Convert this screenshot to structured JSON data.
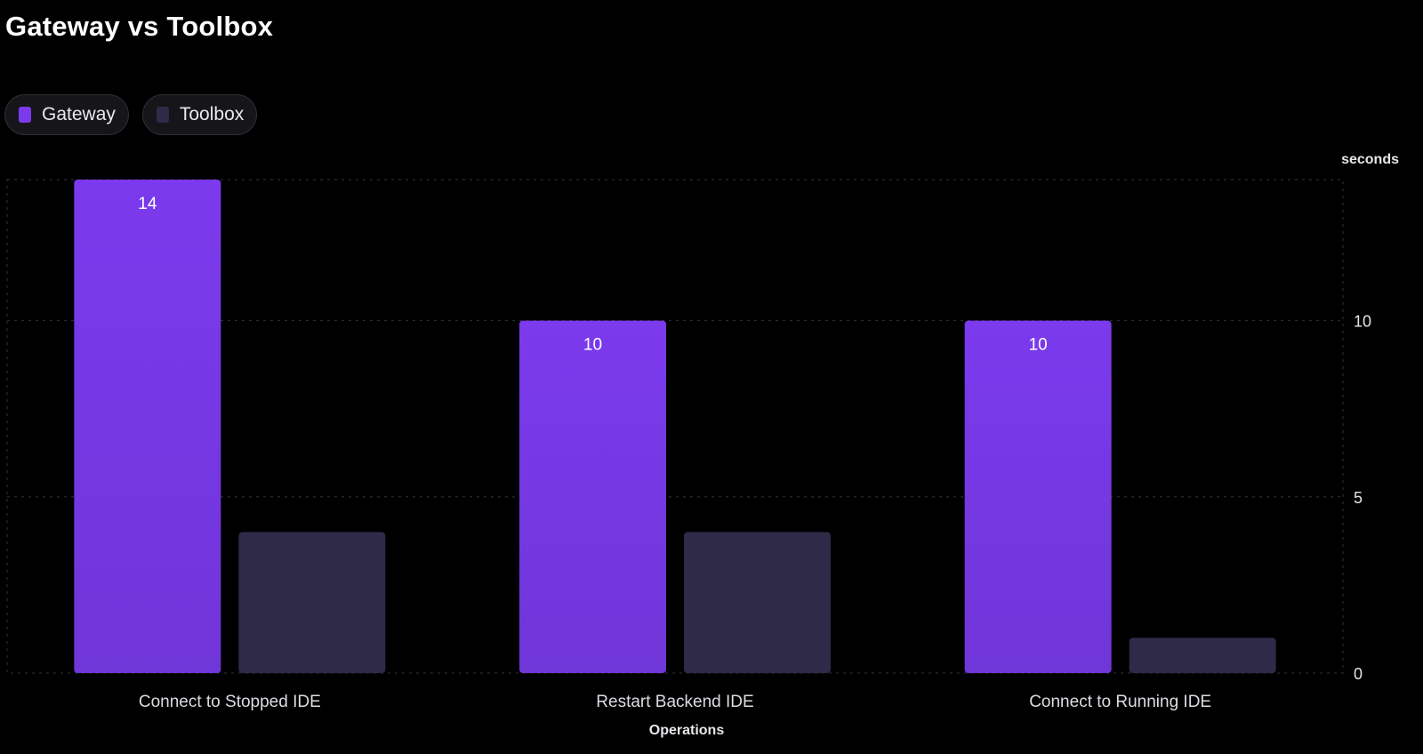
{
  "chart_data": {
    "type": "bar",
    "title": "Gateway vs Toolbox",
    "xlabel": "Operations",
    "ylabel": "seconds",
    "ylim": [
      0,
      14
    ],
    "yticks": [
      0,
      5,
      10
    ],
    "grid": true,
    "legend_position": "top-left",
    "categories": [
      "Connect to Stopped IDE",
      "Restart Backend IDE",
      "Connect to Running IDE"
    ],
    "series": [
      {
        "name": "Gateway",
        "values": [
          14,
          10,
          10
        ],
        "color": "#7b3aed",
        "show_labels": true
      },
      {
        "name": "Toolbox",
        "values": [
          4,
          4,
          1
        ],
        "color": "#2f2a48",
        "show_labels": false
      }
    ]
  }
}
